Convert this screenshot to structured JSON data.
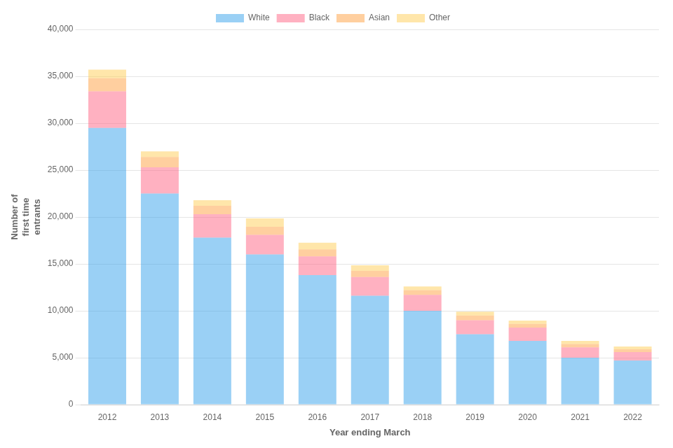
{
  "chart_data": {
    "type": "bar",
    "stacked": true,
    "xlabel": "Year ending March",
    "ylabel": "Number of\nfirst time\nentrants",
    "categories": [
      "2012",
      "2013",
      "2014",
      "2015",
      "2016",
      "2017",
      "2018",
      "2019",
      "2020",
      "2021",
      "2022"
    ],
    "series": [
      {
        "name": "White",
        "values": [
          29500,
          22500,
          17800,
          16000,
          13800,
          11600,
          10000,
          7500,
          6800,
          5000,
          4700
        ]
      },
      {
        "name": "Black",
        "values": [
          3900,
          2800,
          2500,
          2100,
          2000,
          2000,
          1700,
          1500,
          1400,
          1100,
          900
        ]
      },
      {
        "name": "Asian",
        "values": [
          1400,
          1100,
          900,
          850,
          750,
          650,
          500,
          500,
          400,
          350,
          300
        ]
      },
      {
        "name": "Other",
        "values": [
          900,
          600,
          600,
          900,
          700,
          600,
          400,
          400,
          350,
          350,
          300
        ]
      }
    ],
    "ylim": [
      0,
      40000
    ],
    "yticks": [
      0,
      {
        "value": 5000,
        "label": "5,000"
      },
      {
        "value": 10000,
        "label": "10,000"
      },
      {
        "value": 15000,
        "label": "15,000"
      },
      {
        "value": 20000,
        "label": "20,000"
      },
      {
        "value": 25000,
        "label": "25,000"
      },
      {
        "value": 30000,
        "label": "30,000"
      },
      {
        "value": 35000,
        "label": "35,000"
      },
      {
        "value": 40000,
        "label": "40,000"
      }
    ],
    "grid": true,
    "legend": "top"
  }
}
